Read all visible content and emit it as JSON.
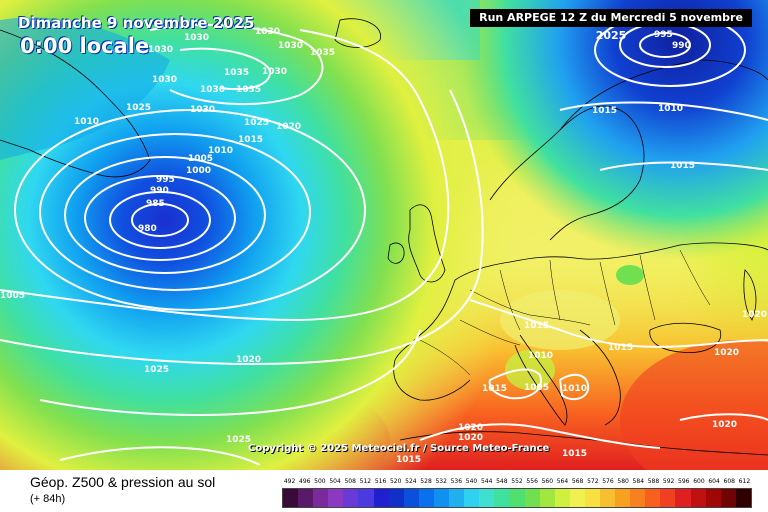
{
  "header": {
    "date": "Dimanche 9 novembre 2025",
    "time": "0:00 locale",
    "run": "Run ARPEGE 12 Z du Mercredi 5 novembre 2025"
  },
  "copyright": "Copyright © 2025 Meteociel.fr / Source Meteo-France",
  "footer": {
    "title": "Géop. Z500 & pression au sol",
    "subtitle": "(+ 84h)"
  },
  "legend": {
    "labels": [
      "492",
      "496",
      "500",
      "504",
      "508",
      "512",
      "516",
      "520",
      "524",
      "528",
      "532",
      "536",
      "540",
      "544",
      "548",
      "552",
      "556",
      "560",
      "564",
      "568",
      "572",
      "576",
      "580",
      "584",
      "588",
      "592",
      "596",
      "600",
      "604",
      "608",
      "612"
    ],
    "colors": [
      "#3a0a3a",
      "#5a1a6a",
      "#7a2a9a",
      "#8a3ac0",
      "#6a3ad8",
      "#4a3ae0",
      "#2020d0",
      "#1030c8",
      "#0a50dc",
      "#0a70ee",
      "#1090f0",
      "#20b0f0",
      "#30d0f0",
      "#40e0d0",
      "#40e0a0",
      "#50e070",
      "#70e050",
      "#a0e840",
      "#d0f040",
      "#f0f050",
      "#f8e040",
      "#f8c030",
      "#f8a020",
      "#f88020",
      "#f86020",
      "#f04020",
      "#e02020",
      "#c01010",
      "#a00808",
      "#700404",
      "#300000"
    ]
  },
  "isobar_labels": [
    "1035",
    "1030",
    "1025",
    "1020",
    "1015",
    "1010",
    "1005",
    "1000",
    "995",
    "990",
    "985",
    "980"
  ],
  "colors": {
    "low_center": "#1a3ad8",
    "high": "#f03020",
    "land_border": "#000000",
    "isobar": "#ffffff"
  }
}
